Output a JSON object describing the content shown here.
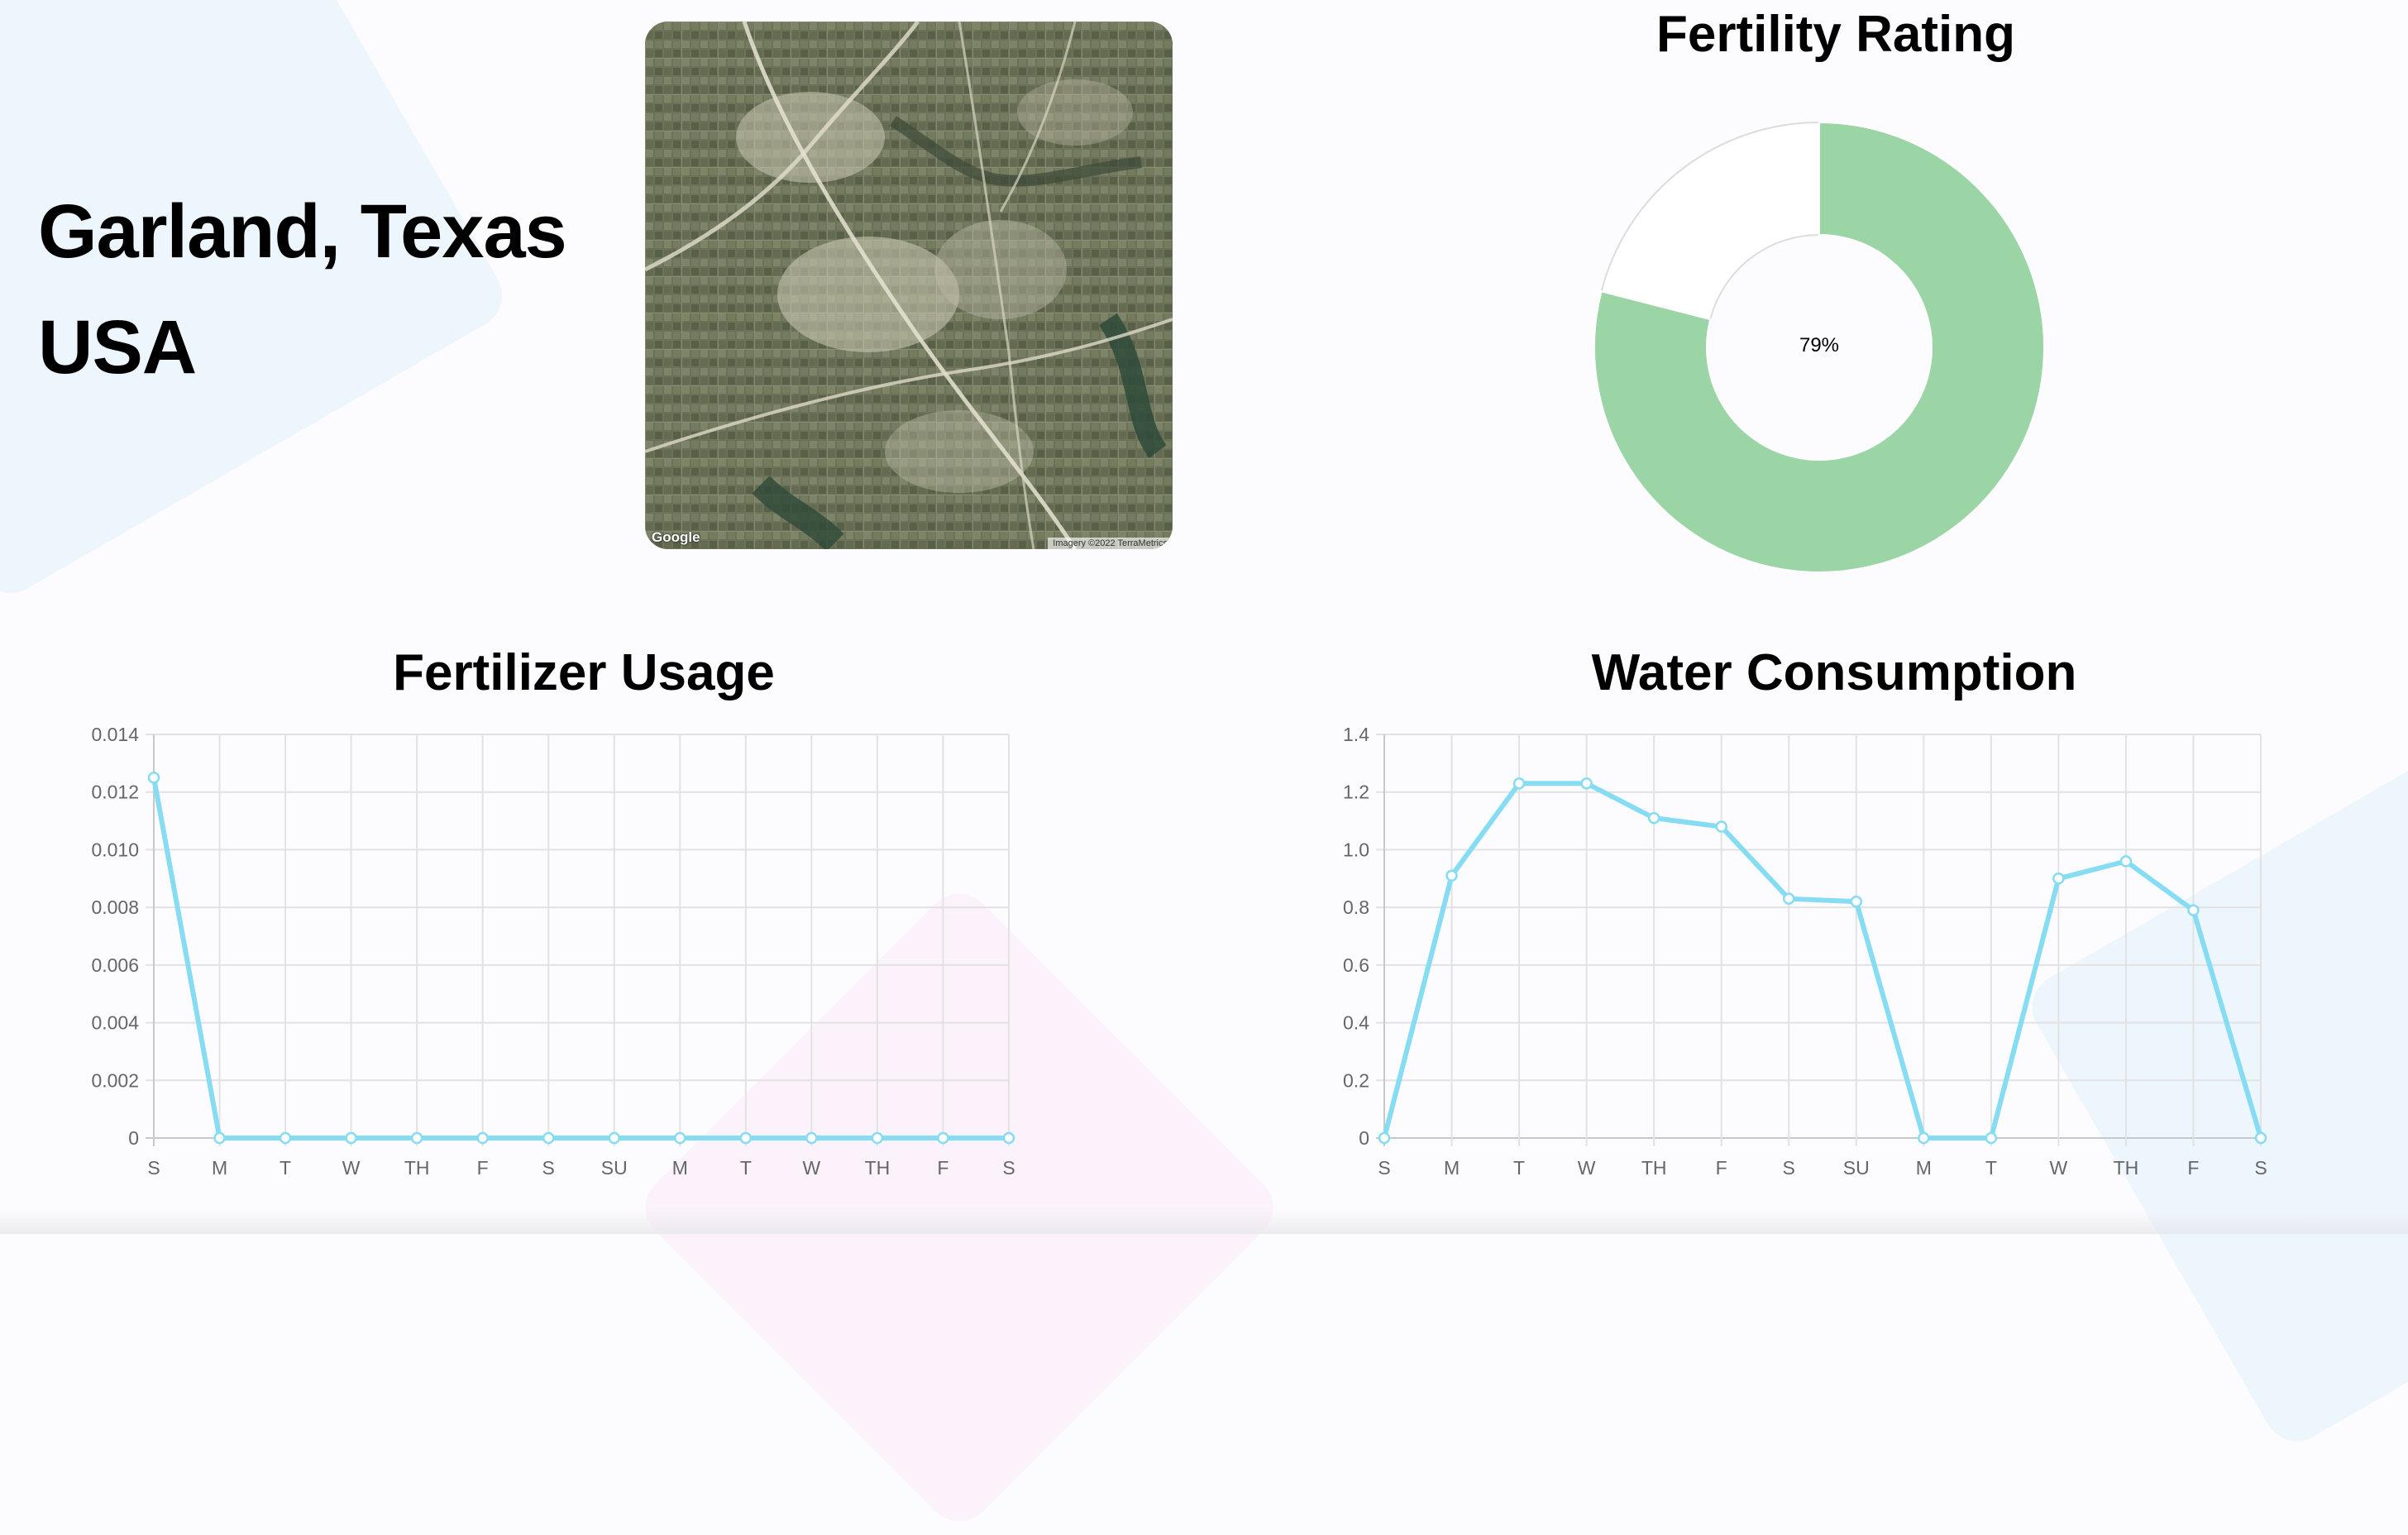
{
  "location": {
    "line1": "Garland, Texas",
    "line2": "USA"
  },
  "map": {
    "logo": "Google",
    "attribution": "Imagery ©2022 TerraMetrics"
  },
  "fertility": {
    "title": "Fertility Rating",
    "value_label": "79%",
    "value": 79,
    "fill_color": "#9bd5a6",
    "rest_color": "#ffffff"
  },
  "chart_data": [
    {
      "type": "line",
      "title": "Fertilizer Usage",
      "xlabel": "",
      "ylabel": "",
      "categories": [
        "S",
        "M",
        "T",
        "W",
        "TH",
        "F",
        "S",
        "SU",
        "M",
        "T",
        "W",
        "TH",
        "F",
        "S"
      ],
      "series": [
        {
          "values": [
            0.0125,
            0,
            0,
            0,
            0,
            0,
            0,
            0,
            0,
            0,
            0,
            0,
            0,
            0
          ]
        }
      ],
      "ylim": [
        0,
        0.014
      ],
      "yticks": [
        "0",
        "0.002",
        "0.004",
        "0.006",
        "0.008",
        "0.010",
        "0.012",
        "0.014"
      ],
      "grid": true,
      "line_color": "#86dcf3"
    },
    {
      "type": "line",
      "title": "Water Consumption",
      "xlabel": "",
      "ylabel": "",
      "categories": [
        "S",
        "M",
        "T",
        "W",
        "TH",
        "F",
        "S",
        "SU",
        "M",
        "T",
        "W",
        "TH",
        "F",
        "S"
      ],
      "series": [
        {
          "values": [
            0,
            0.91,
            1.23,
            1.23,
            1.11,
            1.08,
            0.83,
            0.82,
            0,
            0,
            0.9,
            0.96,
            0.79,
            0
          ]
        }
      ],
      "ylim": [
        0,
        1.4
      ],
      "yticks": [
        "0",
        "0.2",
        "0.4",
        "0.6",
        "0.8",
        "1.0",
        "1.2",
        "1.4"
      ],
      "grid": true,
      "line_color": "#86dcf3"
    }
  ]
}
